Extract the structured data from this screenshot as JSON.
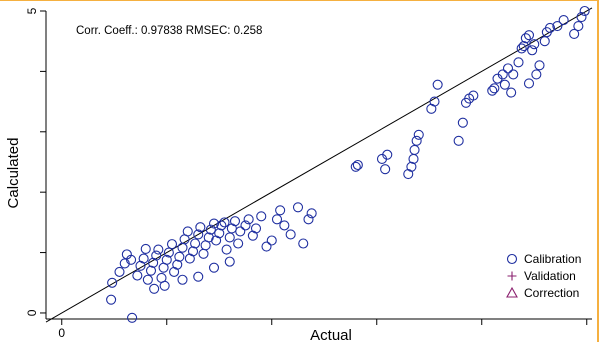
{
  "chart_data": {
    "type": "scatter",
    "stats_text": "Corr. Coeff.: 0.97838   RMSEC: 0.258",
    "xlabel": "Actual",
    "ylabel": "Calculated",
    "x_tick_labels": [
      "0"
    ],
    "y_tick_labels": [
      "5",
      "0"
    ],
    "xlim": [
      -0.15,
      5.05
    ],
    "ylim": [
      -0.1,
      5.0
    ],
    "x_ticks": [
      0,
      1,
      2,
      3,
      4,
      5
    ],
    "y_ticks": [
      0,
      1,
      2,
      3,
      4,
      5
    ],
    "reference_line": {
      "from": [
        -0.15,
        -0.15
      ],
      "to": [
        5.05,
        5.05
      ]
    },
    "legend_position": "bottom-right",
    "legend": [
      {
        "label": "Calibration",
        "marker": "circle",
        "color": "#1f2fa0"
      },
      {
        "label": "Validation",
        "marker": "plus",
        "color": "#8a1f6e"
      },
      {
        "label": "Correction",
        "marker": "triangle",
        "color": "#8a1f6e"
      }
    ],
    "series": [
      {
        "name": "Calibration",
        "marker": "circle",
        "color": "#1f2fa0",
        "points": [
          [
            0.47,
            0.22
          ],
          [
            0.67,
            -0.08
          ],
          [
            0.48,
            0.5
          ],
          [
            0.55,
            0.68
          ],
          [
            0.6,
            0.82
          ],
          [
            0.62,
            0.97
          ],
          [
            0.66,
            0.88
          ],
          [
            0.72,
            0.62
          ],
          [
            0.75,
            0.78
          ],
          [
            0.78,
            0.9
          ],
          [
            0.8,
            1.06
          ],
          [
            0.82,
            0.55
          ],
          [
            0.85,
            0.7
          ],
          [
            0.87,
            0.83
          ],
          [
            0.9,
            0.95
          ],
          [
            0.92,
            1.05
          ],
          [
            0.95,
            0.58
          ],
          [
            0.97,
            0.75
          ],
          [
            1.0,
            0.88
          ],
          [
            1.02,
            1.0
          ],
          [
            1.05,
            1.14
          ],
          [
            1.07,
            0.68
          ],
          [
            1.1,
            0.8
          ],
          [
            1.12,
            0.93
          ],
          [
            1.15,
            1.08
          ],
          [
            1.17,
            1.22
          ],
          [
            1.2,
            1.35
          ],
          [
            1.22,
            0.9
          ],
          [
            1.25,
            1.02
          ],
          [
            1.27,
            1.15
          ],
          [
            1.3,
            1.3
          ],
          [
            1.32,
            1.42
          ],
          [
            1.35,
            0.98
          ],
          [
            1.37,
            1.12
          ],
          [
            1.4,
            1.25
          ],
          [
            1.42,
            1.38
          ],
          [
            1.45,
            1.48
          ],
          [
            1.47,
            1.2
          ],
          [
            1.5,
            1.32
          ],
          [
            1.52,
            1.45
          ],
          [
            1.55,
            1.5
          ],
          [
            1.57,
            1.05
          ],
          [
            1.6,
            1.25
          ],
          [
            1.62,
            1.4
          ],
          [
            1.65,
            1.52
          ],
          [
            1.68,
            1.15
          ],
          [
            1.7,
            1.35
          ],
          [
            1.75,
            1.45
          ],
          [
            1.78,
            1.55
          ],
          [
            1.82,
            1.28
          ],
          [
            1.85,
            1.4
          ],
          [
            1.9,
            1.6
          ],
          [
            1.95,
            1.1
          ],
          [
            2.0,
            1.2
          ],
          [
            2.05,
            1.55
          ],
          [
            2.08,
            1.7
          ],
          [
            2.12,
            1.45
          ],
          [
            2.18,
            1.3
          ],
          [
            2.25,
            1.75
          ],
          [
            2.3,
            1.15
          ],
          [
            2.35,
            1.55
          ],
          [
            2.38,
            1.65
          ],
          [
            0.98,
            0.45
          ],
          [
            1.15,
            0.55
          ],
          [
            1.3,
            0.6
          ],
          [
            1.45,
            0.75
          ],
          [
            1.6,
            0.85
          ],
          [
            0.88,
            0.4
          ],
          [
            2.8,
            2.42
          ],
          [
            2.82,
            2.45
          ],
          [
            3.05,
            2.55
          ],
          [
            3.08,
            2.38
          ],
          [
            3.1,
            2.62
          ],
          [
            3.3,
            2.3
          ],
          [
            3.33,
            2.42
          ],
          [
            3.35,
            2.55
          ],
          [
            3.36,
            2.7
          ],
          [
            3.38,
            2.85
          ],
          [
            3.4,
            2.95
          ],
          [
            3.52,
            3.38
          ],
          [
            3.55,
            3.5
          ],
          [
            3.58,
            3.78
          ],
          [
            3.78,
            2.85
          ],
          [
            3.82,
            3.15
          ],
          [
            3.85,
            3.48
          ],
          [
            3.88,
            3.55
          ],
          [
            3.92,
            3.6
          ],
          [
            4.1,
            3.68
          ],
          [
            4.12,
            3.72
          ],
          [
            4.15,
            3.88
          ],
          [
            4.2,
            3.95
          ],
          [
            4.22,
            3.78
          ],
          [
            4.25,
            4.05
          ],
          [
            4.28,
            3.65
          ],
          [
            4.35,
            4.15
          ],
          [
            4.38,
            4.38
          ],
          [
            4.4,
            4.42
          ],
          [
            4.42,
            4.55
          ],
          [
            4.45,
            4.6
          ],
          [
            4.48,
            4.35
          ],
          [
            4.5,
            4.45
          ],
          [
            4.52,
            3.95
          ],
          [
            4.55,
            4.1
          ],
          [
            4.6,
            4.5
          ],
          [
            4.62,
            4.65
          ],
          [
            4.65,
            4.72
          ],
          [
            4.72,
            4.75
          ],
          [
            4.78,
            4.85
          ],
          [
            4.92,
            4.75
          ],
          [
            4.95,
            4.9
          ],
          [
            4.98,
            5.0
          ],
          [
            4.88,
            4.62
          ],
          [
            4.45,
            3.8
          ],
          [
            4.3,
            3.95
          ]
        ]
      },
      {
        "name": "Validation",
        "marker": "plus",
        "color": "#8a1f6e",
        "points": []
      },
      {
        "name": "Correction",
        "marker": "triangle",
        "color": "#8a1f6e",
        "points": []
      }
    ]
  }
}
